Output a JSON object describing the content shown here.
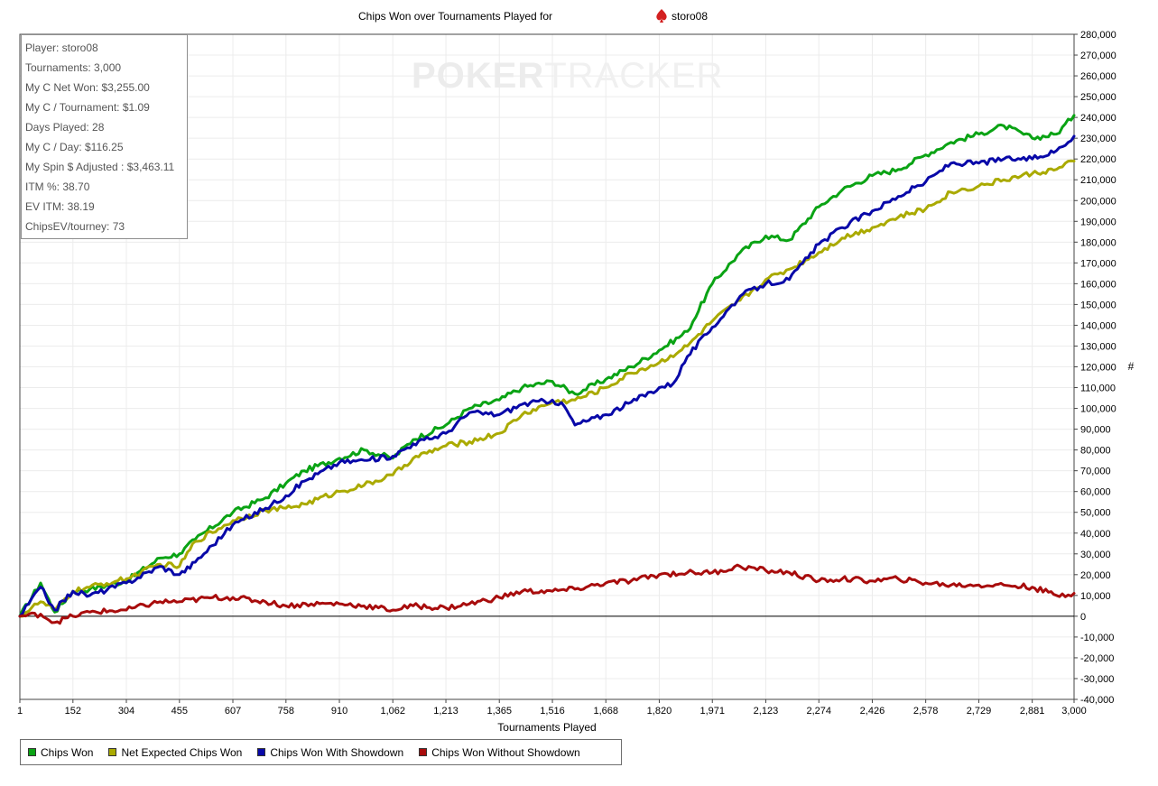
{
  "title": "Chips Won over Tournaments Played for",
  "player_name": "storo08",
  "watermark": {
    "bold": "POKER",
    "thin": "TRACKER"
  },
  "stats": [
    "Player: storo08",
    "Tournaments: 3,000",
    "My C Net Won: $3,255.00",
    "My C / Tournament: $1.09",
    "Days Played: 28",
    "My C / Day: $116.25",
    "My Spin $ Adjusted : $3,463.11",
    "ITM %: 38.70",
    "EV ITM: 38.19",
    "ChipsEV/tourney: 73"
  ],
  "chart_data": {
    "type": "line",
    "title": "Chips Won over Tournaments Played for storo08",
    "xlabel": "Tournaments Played",
    "ylabel": "#",
    "xlim": [
      1,
      3000
    ],
    "ylim": [
      -40000,
      280000
    ],
    "x_ticks": [
      1,
      152,
      304,
      455,
      607,
      758,
      910,
      1062,
      1213,
      1365,
      1516,
      1668,
      1820,
      1971,
      2123,
      2274,
      2426,
      2578,
      2729,
      2881,
      3000
    ],
    "x_tick_labels": [
      "1",
      "152",
      "304",
      "455",
      "607",
      "758",
      "910",
      "1,062",
      "1,213",
      "1,365",
      "1,516",
      "1,668",
      "1,820",
      "1,971",
      "2,123",
      "2,274",
      "2,426",
      "2,578",
      "2,729",
      "2,881",
      "3,000"
    ],
    "y_ticks": [
      -40000,
      -30000,
      -20000,
      -10000,
      0,
      10000,
      20000,
      30000,
      40000,
      50000,
      60000,
      70000,
      80000,
      90000,
      100000,
      110000,
      120000,
      130000,
      140000,
      150000,
      160000,
      170000,
      180000,
      190000,
      200000,
      210000,
      220000,
      230000,
      240000,
      250000,
      260000,
      270000,
      280000
    ],
    "y_tick_labels": [
      "-40,000",
      "-30,000",
      "-20,000",
      "-10,000",
      "0",
      "10,000",
      "20,000",
      "30,000",
      "40,000",
      "50,000",
      "60,000",
      "70,000",
      "80,000",
      "90,000",
      "100,000",
      "110,000",
      "120,000",
      "130,000",
      "140,000",
      "150,000",
      "160,000",
      "170,000",
      "180,000",
      "190,000",
      "200,000",
      "210,000",
      "220,000",
      "230,000",
      "240,000",
      "250,000",
      "260,000",
      "270,000",
      "280,000"
    ],
    "grid": true,
    "legend_position": "bottom-left",
    "series": [
      {
        "name": "Chips Won",
        "color": "#0aa314",
        "x": [
          1,
          60,
          100,
          152,
          200,
          304,
          400,
          455,
          500,
          607,
          700,
          758,
          810,
          910,
          980,
          1062,
          1120,
          1213,
          1280,
          1365,
          1430,
          1516,
          1580,
          1668,
          1740,
          1820,
          1900,
          1971,
          2050,
          2123,
          2190,
          2274,
          2340,
          2426,
          2500,
          2578,
          2650,
          2729,
          2800,
          2881,
          2950,
          3000
        ],
        "y": [
          0,
          16000,
          2000,
          12000,
          13000,
          17000,
          28000,
          30000,
          37000,
          50000,
          57000,
          64000,
          70000,
          76000,
          80000,
          76000,
          85000,
          92000,
          100000,
          104000,
          110000,
          113000,
          107000,
          114000,
          120000,
          128000,
          137000,
          160000,
          175000,
          183000,
          181000,
          197000,
          205000,
          212000,
          215000,
          222000,
          228000,
          232000,
          236000,
          230000,
          232000,
          241000
        ]
      },
      {
        "name": "Net Expected Chips Won",
        "color": "#aaaa00",
        "x": [
          1,
          60,
          100,
          152,
          200,
          304,
          400,
          455,
          500,
          607,
          700,
          758,
          810,
          910,
          980,
          1062,
          1120,
          1213,
          1280,
          1365,
          1430,
          1516,
          1580,
          1668,
          1740,
          1820,
          1900,
          1971,
          2050,
          2123,
          2190,
          2274,
          2340,
          2426,
          2500,
          2578,
          2650,
          2729,
          2800,
          2881,
          2950,
          3000
        ],
        "y": [
          0,
          7000,
          3000,
          12000,
          14000,
          18000,
          25000,
          24000,
          36000,
          46000,
          51000,
          52000,
          54000,
          60000,
          63000,
          68000,
          76000,
          82000,
          84000,
          88000,
          97000,
          103000,
          104000,
          110000,
          117000,
          122000,
          130000,
          142000,
          152000,
          162000,
          167000,
          175000,
          182000,
          187000,
          192000,
          196000,
          204000,
          207000,
          210000,
          213000,
          215000,
          219000
        ]
      },
      {
        "name": "Chips Won With Showdown",
        "color": "#0808a8",
        "x": [
          1,
          60,
          100,
          152,
          200,
          304,
          400,
          455,
          500,
          607,
          700,
          758,
          810,
          910,
          980,
          1062,
          1120,
          1213,
          1280,
          1365,
          1430,
          1516,
          1550,
          1580,
          1668,
          1740,
          1820,
          1860,
          1900,
          1971,
          2050,
          2123,
          2190,
          2274,
          2340,
          2426,
          2500,
          2578,
          2650,
          2729,
          2800,
          2881,
          2950,
          3000
        ],
        "y": [
          0,
          14000,
          3000,
          12000,
          10000,
          16000,
          24000,
          20000,
          26000,
          44000,
          52000,
          58000,
          65000,
          74000,
          75000,
          77000,
          83000,
          88000,
          98000,
          97000,
          102000,
          104000,
          101000,
          92000,
          97000,
          103000,
          110000,
          112000,
          125000,
          139000,
          154000,
          160000,
          162000,
          179000,
          187000,
          195000,
          202000,
          209000,
          218000,
          218000,
          220000,
          220000,
          224000,
          231000
        ]
      },
      {
        "name": "Chips Won Without Showdown",
        "color": "#a80c0c",
        "x": [
          1,
          60,
          100,
          152,
          200,
          304,
          400,
          455,
          550,
          607,
          700,
          758,
          830,
          910,
          980,
          1062,
          1120,
          1213,
          1280,
          1365,
          1430,
          1516,
          1580,
          1668,
          1740,
          1820,
          1900,
          1971,
          2050,
          2123,
          2190,
          2274,
          2340,
          2426,
          2500,
          2578,
          2650,
          2729,
          2800,
          2881,
          2950,
          3000
        ],
        "y": [
          0,
          1000,
          -3000,
          0,
          2000,
          3000,
          7000,
          7000,
          9000,
          9000,
          7000,
          5000,
          6000,
          6000,
          5000,
          3000,
          5000,
          4000,
          6000,
          9000,
          12000,
          12000,
          13000,
          16000,
          17000,
          20000,
          21000,
          21000,
          24000,
          22000,
          21000,
          17000,
          18000,
          17000,
          18000,
          16000,
          15000,
          15000,
          15000,
          14000,
          10000,
          11000
        ]
      }
    ]
  },
  "legend": [
    {
      "label": "Chips Won",
      "color": "#0aa314"
    },
    {
      "label": "Net Expected Chips Won",
      "color": "#aaaa00"
    },
    {
      "label": "Chips Won With Showdown",
      "color": "#0808a8"
    },
    {
      "label": "Chips Won Without Showdown",
      "color": "#a80c0c"
    }
  ]
}
